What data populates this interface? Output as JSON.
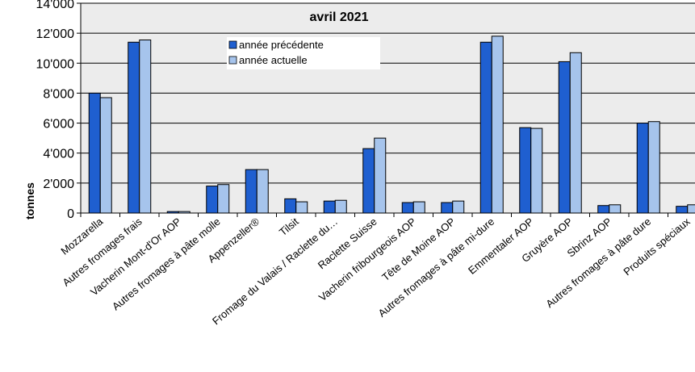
{
  "chart_data": {
    "type": "bar",
    "title": "",
    "subtitle": "avril 2021",
    "ylabel": "tonnes",
    "xlabel": "",
    "ylim": [
      0,
      14000
    ],
    "yticks": [
      "0",
      "2'000",
      "4'000",
      "6'000",
      "8'000",
      "10'000",
      "12'000",
      "14'000"
    ],
    "grid": true,
    "legend_position": "top-center",
    "categories": [
      "Mozzarella",
      "Autres fromages frais",
      "Vacherin Mont-d'Or AOP",
      "Autres fromages à pâte molle",
      "Appenzeller®",
      "Tilsit",
      "Fromage du Valais / Raclette du…",
      "Raclette Suisse",
      "Vacherin fribourgeois AOP",
      "Tête de Moine AOP",
      "Autres fromages à pâte mi-dure",
      "Emmentaler AOP",
      "Gruyère AOP",
      "Sbrinz AOP",
      "Autres fromages à pâte dure",
      "Produits spéciaux"
    ],
    "series": [
      {
        "name": "année précédente",
        "color": "#1f5fd0",
        "values": [
          8000,
          11400,
          100,
          1800,
          2900,
          950,
          800,
          4300,
          700,
          700,
          11400,
          5700,
          10100,
          500,
          6000,
          450
        ]
      },
      {
        "name": "année actuelle",
        "color": "#a6c4ec",
        "values": [
          7700,
          11550,
          100,
          1900,
          2900,
          750,
          850,
          5000,
          750,
          800,
          11800,
          5650,
          10700,
          550,
          6100,
          550
        ]
      }
    ]
  }
}
